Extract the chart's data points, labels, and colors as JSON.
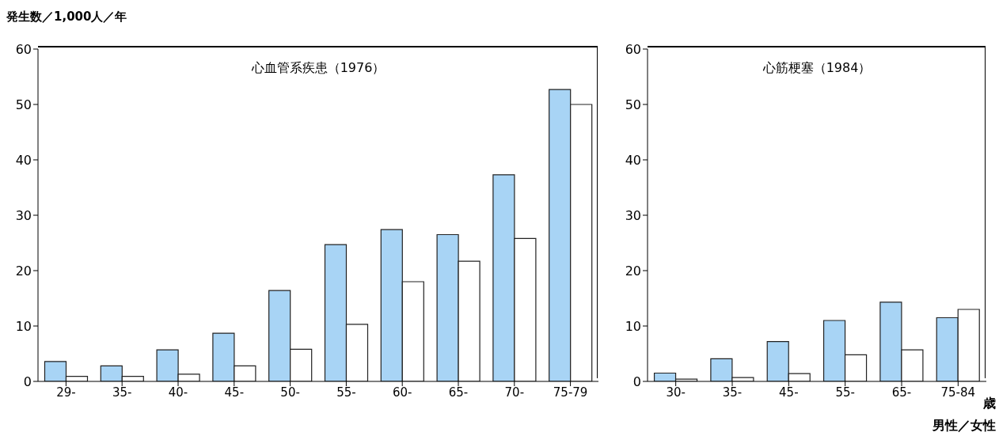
{
  "chart_data": [
    {
      "type": "bar",
      "title": "心血管系疾患（1976）",
      "ylabel": "発生数／1,000人／年",
      "categories": [
        "29-",
        "35-",
        "40-",
        "45-",
        "50-",
        "55-",
        "60-",
        "65-",
        "70-",
        "75-79"
      ],
      "series": [
        {
          "color": "#a8d4f5",
          "values": [
            3.6,
            2.8,
            5.7,
            8.7,
            16.4,
            24.7,
            27.4,
            26.5,
            37.3,
            52.7
          ]
        },
        {
          "color": "#ffffff",
          "values": [
            0.9,
            0.9,
            1.3,
            2.8,
            5.8,
            10.3,
            18,
            21.7,
            25.8,
            50
          ]
        }
      ],
      "ylim": [
        0,
        60
      ],
      "yticks": [
        0,
        10,
        20,
        30,
        40,
        50,
        60
      ],
      "grid": false,
      "legend": false
    },
    {
      "type": "bar",
      "title": "心筋梗塞（1984）",
      "xlabel": "歳",
      "categories": [
        "30-",
        "35-",
        "45-",
        "55-",
        "65-",
        "75-84"
      ],
      "series": [
        {
          "color": "#a8d4f5",
          "values": [
            1.5,
            4.1,
            7.2,
            11,
            14.3,
            11.5
          ]
        },
        {
          "color": "#ffffff",
          "values": [
            0.4,
            0.7,
            1.4,
            4.8,
            5.7,
            13
          ]
        }
      ],
      "ylim": [
        0,
        60
      ],
      "yticks": [
        0,
        10,
        20,
        30,
        40,
        50,
        60
      ],
      "grid": false,
      "legend": false,
      "annotations": [
        "男性／女性"
      ]
    }
  ]
}
